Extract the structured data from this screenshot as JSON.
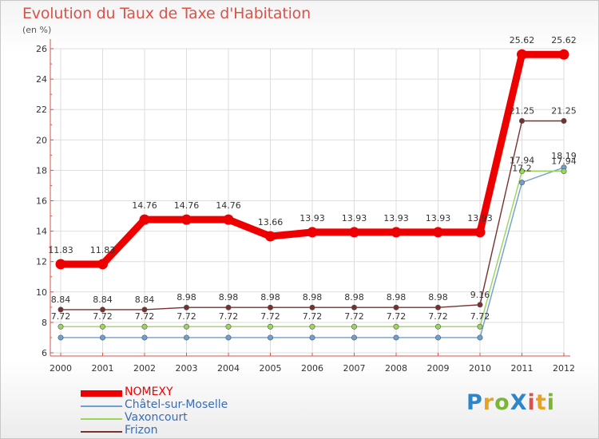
{
  "title": "Evolution du Taux de Taxe d'Habitation",
  "subtitle": "(en %)",
  "logo": {
    "text": "ProXiti",
    "letters": [
      {
        "ch": "P",
        "color": "#2e86c8"
      },
      {
        "ch": "r",
        "color": "#e8a21f"
      },
      {
        "ch": "o",
        "color": "#7ab534"
      },
      {
        "ch": "X",
        "color": "#2e86c8"
      },
      {
        "ch": "i",
        "color": "#d9534a"
      },
      {
        "ch": "t",
        "color": "#e8a21f"
      },
      {
        "ch": "i",
        "color": "#7ab534"
      }
    ]
  },
  "chart_data": {
    "type": "line",
    "title": "Evolution du Taux de Taxe d'Habitation",
    "ylabel": "(en %)",
    "xlabel": "",
    "ylim": [
      6,
      26
    ],
    "yticks": [
      6,
      8,
      10,
      12,
      14,
      16,
      18,
      20,
      22,
      24,
      26
    ],
    "grid": true,
    "legend_position": "bottom-left",
    "categories": [
      "2000",
      "2001",
      "2002",
      "2003",
      "2004",
      "2005",
      "2006",
      "2007",
      "2008",
      "2009",
      "2010",
      "2011",
      "2012"
    ],
    "series": [
      {
        "name": "NOMEXY",
        "color": "#ee0000",
        "values": [
          11.83,
          11.83,
          14.76,
          14.76,
          14.76,
          13.66,
          13.93,
          13.93,
          13.93,
          13.93,
          13.93,
          25.62,
          25.62
        ],
        "labels": [
          "11.83",
          "11.83",
          "14.76",
          "14.76",
          "14.76",
          "13.66",
          "13.93",
          "13.93",
          "13.93",
          "13.93",
          "13.93",
          "25.62",
          "25.62"
        ]
      },
      {
        "name": "Châtel-sur-Moselle",
        "color": "#6f9fce",
        "values": [
          7.0,
          7.0,
          7.0,
          7.0,
          7.0,
          7.0,
          7.0,
          7.0,
          7.0,
          7.0,
          7.0,
          17.2,
          18.19
        ],
        "labels": [
          "",
          "",
          "",
          "",
          "",
          "",
          "",
          "",
          "",
          "",
          "",
          "17.2",
          "18.19"
        ]
      },
      {
        "name": "Vaxoncourt",
        "color": "#99d65c",
        "values": [
          7.72,
          7.72,
          7.72,
          7.72,
          7.72,
          7.72,
          7.72,
          7.72,
          7.72,
          7.72,
          7.72,
          17.94,
          17.94
        ],
        "labels": [
          "7.72",
          "7.72",
          "7.72",
          "7.72",
          "7.72",
          "7.72",
          "7.72",
          "7.72",
          "7.72",
          "7.72",
          "7.72",
          "17.94",
          "17.94"
        ]
      },
      {
        "name": "Frizon",
        "color": "#7a2f2f",
        "values": [
          8.84,
          8.84,
          8.84,
          8.98,
          8.98,
          8.98,
          8.98,
          8.98,
          8.98,
          8.98,
          9.16,
          21.25,
          21.25
        ],
        "labels": [
          "8.84",
          "8.84",
          "8.84",
          "8.98",
          "8.98",
          "8.98",
          "8.98",
          "8.98",
          "8.98",
          "8.98",
          "9.16",
          "21.25",
          "21.25"
        ]
      }
    ]
  }
}
